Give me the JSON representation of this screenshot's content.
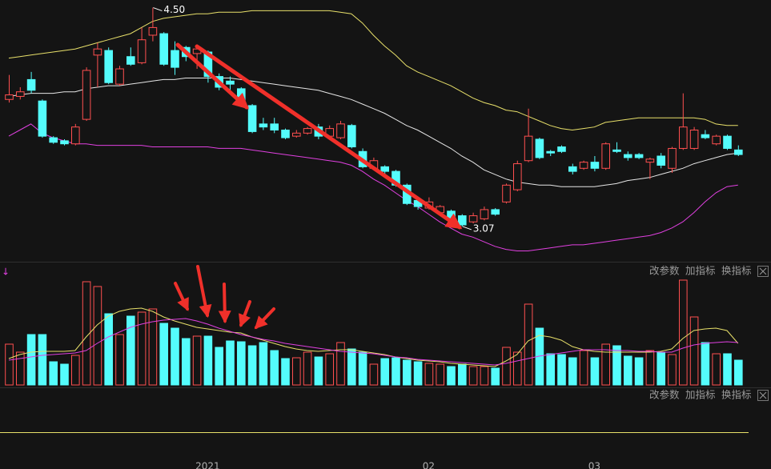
{
  "chart_data": {
    "type": "candlestick",
    "categories": [
      null,
      null,
      null,
      null,
      null,
      null,
      null,
      null,
      null,
      null,
      null,
      null,
      null,
      null,
      null,
      null,
      null,
      null,
      "2021",
      null,
      null,
      null,
      null,
      null,
      null,
      null,
      null,
      null,
      null,
      null,
      null,
      null,
      null,
      null,
      null,
      null,
      null,
      null,
      "02",
      null,
      null,
      null,
      null,
      null,
      null,
      null,
      null,
      null,
      null,
      null,
      null,
      null,
      null,
      "03",
      null,
      null,
      null,
      null,
      null,
      null,
      null,
      null,
      null,
      null,
      null,
      null,
      null
    ],
    "open": [
      3.9,
      3.92,
      4.03,
      3.89,
      3.65,
      3.63,
      3.61,
      3.77,
      4.19,
      4.22,
      4.0,
      4.18,
      4.14,
      4.32,
      4.33,
      4.22,
      4.24,
      4.2,
      4.21,
      4.05,
      4.02,
      3.97,
      3.86,
      3.74,
      3.74,
      3.7,
      3.66,
      3.68,
      3.72,
      3.66,
      3.65,
      3.73,
      3.56,
      3.45,
      3.46,
      3.43,
      3.34,
      3.24,
      3.19,
      3.16,
      3.17,
      3.14,
      3.1,
      3.12,
      3.18,
      3.23,
      3.31,
      3.5,
      3.64,
      3.56,
      3.59,
      3.46,
      3.45,
      3.49,
      3.45,
      3.57,
      3.54,
      3.54,
      3.49,
      3.53,
      3.45,
      3.58,
      3.58,
      3.67,
      3.61,
      3.66,
      3.57
    ],
    "high": [
      4.06,
      3.98,
      4.08,
      3.9,
      3.66,
      3.64,
      3.74,
      4.11,
      4.27,
      4.24,
      4.12,
      4.24,
      4.37,
      4.5,
      4.34,
      4.28,
      4.25,
      4.26,
      4.22,
      4.07,
      4.05,
      3.98,
      3.87,
      3.78,
      3.78,
      3.71,
      3.7,
      3.72,
      3.74,
      3.73,
      3.76,
      3.74,
      3.58,
      3.52,
      3.47,
      3.44,
      3.35,
      3.25,
      3.26,
      3.21,
      3.18,
      3.15,
      3.16,
      3.2,
      3.19,
      3.35,
      3.5,
      3.84,
      3.65,
      3.57,
      3.6,
      3.48,
      3.5,
      3.53,
      3.62,
      3.62,
      3.56,
      3.55,
      3.52,
      3.55,
      3.59,
      3.94,
      3.72,
      3.7,
      3.67,
      3.67,
      3.6
    ],
    "low": [
      3.88,
      3.9,
      3.94,
      3.65,
      3.61,
      3.6,
      3.6,
      3.76,
      3.98,
      4.0,
      3.99,
      4.12,
      4.13,
      4.28,
      4.12,
      4.06,
      4.15,
      4.1,
      4.01,
      3.96,
      3.95,
      3.85,
      3.68,
      3.7,
      3.68,
      3.64,
      3.65,
      3.67,
      3.64,
      3.65,
      3.64,
      3.58,
      3.45,
      3.44,
      3.41,
      3.33,
      3.21,
      3.18,
      3.18,
      3.15,
      3.09,
      3.07,
      3.09,
      3.11,
      3.14,
      3.22,
      3.3,
      3.49,
      3.51,
      3.53,
      3.55,
      3.41,
      3.44,
      3.43,
      3.44,
      3.55,
      3.5,
      3.51,
      3.38,
      3.45,
      3.42,
      3.57,
      3.57,
      3.64,
      3.6,
      3.57,
      3.53
    ],
    "close": [
      3.93,
      3.95,
      3.96,
      3.66,
      3.62,
      3.61,
      3.72,
      4.09,
      4.23,
      4.01,
      4.1,
      4.13,
      4.29,
      4.37,
      4.13,
      4.11,
      4.18,
      4.23,
      4.05,
      3.98,
      4.0,
      3.87,
      3.69,
      3.72,
      3.7,
      3.65,
      3.68,
      3.71,
      3.66,
      3.71,
      3.74,
      3.59,
      3.46,
      3.5,
      3.43,
      3.34,
      3.22,
      3.2,
      3.23,
      3.2,
      3.11,
      3.08,
      3.14,
      3.18,
      3.15,
      3.34,
      3.48,
      3.66,
      3.52,
      3.55,
      3.56,
      3.43,
      3.49,
      3.45,
      3.61,
      3.56,
      3.52,
      3.52,
      3.51,
      3.47,
      3.58,
      3.72,
      3.7,
      3.65,
      3.66,
      3.58,
      3.54
    ],
    "ylim": [
      2.85,
      4.55
    ],
    "up_color": "#ff4f4f",
    "down_color": "#54fcfc",
    "lines": [
      {
        "color": "#e8e06a",
        "values": [
          4.17,
          4.18,
          4.19,
          4.2,
          4.21,
          4.22,
          4.23,
          4.25,
          4.27,
          4.29,
          4.31,
          4.33,
          4.37,
          4.41,
          4.43,
          4.44,
          4.45,
          4.46,
          4.46,
          4.47,
          4.47,
          4.47,
          4.48,
          4.48,
          4.48,
          4.48,
          4.48,
          4.48,
          4.48,
          4.48,
          4.47,
          4.46,
          4.4,
          4.32,
          4.25,
          4.19,
          4.12,
          4.08,
          4.05,
          4.02,
          3.99,
          3.95,
          3.91,
          3.88,
          3.86,
          3.83,
          3.82,
          3.79,
          3.76,
          3.73,
          3.71,
          3.7,
          3.71,
          3.72,
          3.75,
          3.76,
          3.77,
          3.78,
          3.78,
          3.78,
          3.78,
          3.78,
          3.78,
          3.77,
          3.74,
          3.73,
          3.73
        ]
      },
      {
        "color": "#e6e6e6",
        "values": [
          3.92,
          3.93,
          3.94,
          3.94,
          3.94,
          3.95,
          3.95,
          3.97,
          3.98,
          3.99,
          3.99,
          4.0,
          4.01,
          4.02,
          4.03,
          4.03,
          4.04,
          4.04,
          4.04,
          4.04,
          4.04,
          4.03,
          4.02,
          4.01,
          4.0,
          3.99,
          3.98,
          3.97,
          3.96,
          3.94,
          3.92,
          3.9,
          3.87,
          3.84,
          3.81,
          3.77,
          3.73,
          3.7,
          3.66,
          3.62,
          3.58,
          3.53,
          3.49,
          3.44,
          3.41,
          3.38,
          3.36,
          3.35,
          3.34,
          3.34,
          3.33,
          3.33,
          3.33,
          3.33,
          3.34,
          3.35,
          3.37,
          3.38,
          3.39,
          3.41,
          3.43,
          3.45,
          3.48,
          3.5,
          3.52,
          3.54,
          3.55
        ]
      },
      {
        "color": "#e040e0",
        "values": [
          3.66,
          3.7,
          3.74,
          3.68,
          3.65,
          3.63,
          3.61,
          3.61,
          3.6,
          3.6,
          3.6,
          3.6,
          3.6,
          3.59,
          3.59,
          3.59,
          3.59,
          3.59,
          3.59,
          3.58,
          3.58,
          3.58,
          3.57,
          3.56,
          3.55,
          3.54,
          3.53,
          3.52,
          3.51,
          3.5,
          3.49,
          3.47,
          3.43,
          3.38,
          3.34,
          3.29,
          3.24,
          3.2,
          3.15,
          3.1,
          3.06,
          3.02,
          3.0,
          2.97,
          2.94,
          2.92,
          2.91,
          2.91,
          2.92,
          2.93,
          2.94,
          2.95,
          2.95,
          2.96,
          2.97,
          2.98,
          2.99,
          3.0,
          3.01,
          3.03,
          3.06,
          3.1,
          3.16,
          3.23,
          3.29,
          3.33,
          3.34
        ]
      }
    ],
    "annotations": [
      {
        "value": 4.5,
        "label": "4.50"
      },
      {
        "value": 3.07,
        "label": "3.07"
      }
    ],
    "volume": {
      "type": "bar",
      "values": [
        51,
        41,
        63,
        63,
        29,
        26,
        37,
        129,
        123,
        89,
        63,
        86,
        91,
        95,
        77,
        71,
        58,
        61,
        61,
        47,
        55,
        54,
        49,
        53,
        43,
        33,
        34,
        41,
        35,
        39,
        53,
        45,
        41,
        26,
        33,
        34,
        31,
        29,
        27,
        26,
        23,
        26,
        23,
        23,
        21,
        47,
        41,
        101,
        71,
        39,
        38,
        34,
        43,
        34,
        51,
        49,
        36,
        34,
        43,
        41,
        38,
        131,
        85,
        53,
        39,
        39,
        31
      ],
      "ylim": [
        0,
        140
      ],
      "lines": [
        {
          "color": "#e8e06a",
          "values": [
            33,
            38,
            41,
            42,
            42,
            42,
            43,
            60,
            75,
            86,
            92,
            95,
            96,
            92,
            85,
            80,
            76,
            72,
            70,
            68,
            66,
            65,
            60,
            56,
            52,
            48,
            45,
            43,
            42,
            43,
            44,
            44,
            42,
            40,
            38,
            35,
            33,
            31,
            30,
            29,
            27,
            26,
            25,
            24,
            23,
            30,
            38,
            55,
            62,
            60,
            56,
            48,
            44,
            42,
            41,
            41,
            41,
            41,
            41,
            42,
            45,
            58,
            68,
            70,
            71,
            68,
            52
          ]
        },
        {
          "color": "#e040e0",
          "values": [
            31,
            33,
            35,
            37,
            38,
            39,
            40,
            43,
            52,
            60,
            66,
            72,
            76,
            79,
            81,
            82,
            83,
            80,
            76,
            71,
            67,
            63,
            60,
            57,
            55,
            52,
            50,
            48,
            46,
            44,
            42,
            41,
            40,
            39,
            37,
            35,
            34,
            32,
            31,
            30,
            29,
            28,
            27,
            26,
            25,
            27,
            30,
            33,
            36,
            38,
            40,
            42,
            44,
            44,
            44,
            43,
            43,
            42,
            42,
            41,
            41,
            46,
            50,
            52,
            53,
            54,
            53
          ]
        }
      ]
    }
  },
  "toolbar": [
    "改参数",
    "加指标",
    "换指标"
  ]
}
